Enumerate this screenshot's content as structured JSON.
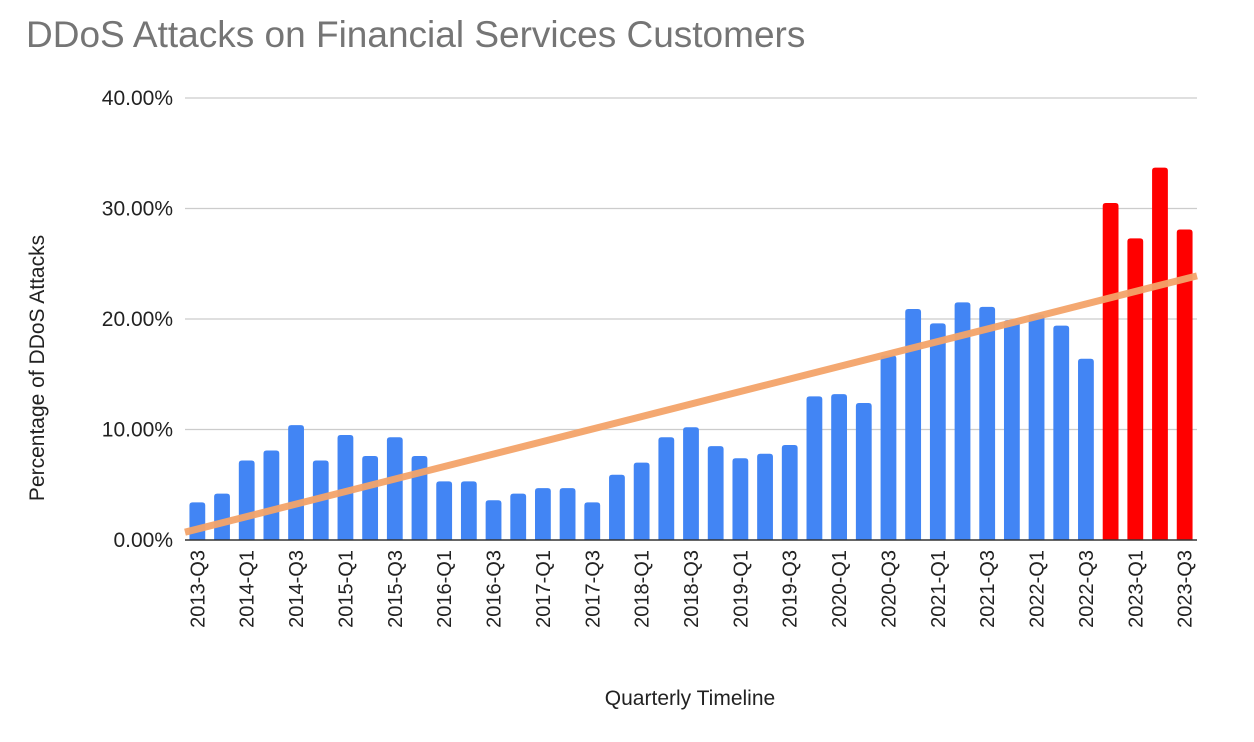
{
  "chart_data": {
    "type": "bar",
    "title": "DDoS Attacks on Financial Services Customers",
    "xlabel": "Quarterly Timeline",
    "ylabel": "Percentage of DDoS Attacks",
    "ylim": [
      0,
      40
    ],
    "yticks": [
      "0.00%",
      "10.00%",
      "20.00%",
      "30.00%",
      "40.00%"
    ],
    "grid": true,
    "legend": "none",
    "categories": [
      "2013-Q3",
      "2013-Q4",
      "2014-Q1",
      "2014-Q2",
      "2014-Q3",
      "2014-Q4",
      "2015-Q1",
      "2015-Q2",
      "2015-Q3",
      "2015-Q4",
      "2016-Q1",
      "2016-Q2",
      "2016-Q3",
      "2016-Q4",
      "2017-Q1",
      "2017-Q2",
      "2017-Q3",
      "2017-Q4",
      "2018-Q1",
      "2018-Q2",
      "2018-Q3",
      "2018-Q4",
      "2019-Q1",
      "2019-Q2",
      "2019-Q3",
      "2019-Q4",
      "2020-Q1",
      "2020-Q2",
      "2020-Q3",
      "2020-Q4",
      "2021-Q1",
      "2021-Q2",
      "2021-Q3",
      "2021-Q4",
      "2022-Q1",
      "2022-Q2",
      "2022-Q3",
      "2022-Q4",
      "2023-Q1",
      "2023-Q2",
      "2023-Q3"
    ],
    "tick_labels": [
      "2013-Q3",
      "2014-Q1",
      "2014-Q3",
      "2015-Q1",
      "2015-Q3",
      "2016-Q1",
      "2016-Q3",
      "2017-Q1",
      "2017-Q3",
      "2018-Q1",
      "2018-Q3",
      "2019-Q1",
      "2019-Q3",
      "2020-Q1",
      "2020-Q3",
      "2021-Q1",
      "2021-Q3",
      "2022-Q1",
      "2022-Q3",
      "2023-Q1",
      "2023-Q3"
    ],
    "values": [
      3.4,
      4.2,
      7.2,
      8.1,
      10.4,
      7.2,
      9.5,
      7.6,
      9.3,
      7.6,
      5.3,
      5.3,
      3.6,
      4.2,
      4.7,
      4.7,
      3.4,
      5.9,
      7.0,
      9.3,
      10.2,
      8.5,
      7.4,
      7.8,
      8.6,
      13.0,
      13.2,
      12.4,
      16.7,
      20.9,
      19.6,
      21.5,
      21.1,
      19.9,
      20.4,
      19.4,
      16.4,
      30.5,
      27.3,
      33.7,
      28.1
    ],
    "colors": {
      "bar": "#4285f4",
      "highlight": "#ff0000",
      "trendline": "#f4a46a",
      "grid": "#cccccc",
      "axis": "#333333"
    },
    "highlight_from": "2022-Q4",
    "trendline": {
      "type": "linear"
    }
  }
}
